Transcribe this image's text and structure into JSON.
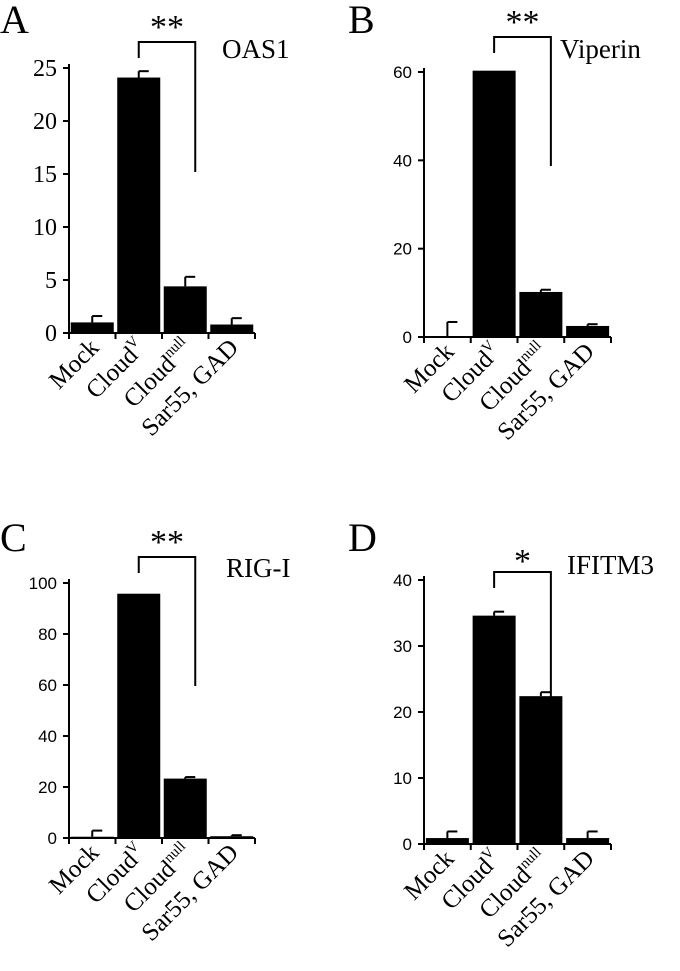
{
  "chart_data": [
    {
      "type": "bar",
      "panel": "A",
      "gene": "OAS1",
      "categories": [
        {
          "base": "Mock",
          "sup": ""
        },
        {
          "base": "Cloud",
          "sup": "V"
        },
        {
          "base": "Cloud",
          "sup": "null"
        },
        {
          "base": "Sar55, GAD",
          "sup": ""
        }
      ],
      "values": [
        1.0,
        24.1,
        4.4,
        0.8
      ],
      "errors": [
        0.6,
        0.6,
        0.9,
        0.6
      ],
      "ylim": [
        0,
        25
      ],
      "yticks": [
        0,
        5,
        10,
        15,
        20,
        25
      ],
      "significance": {
        "label": "**",
        "from": 1,
        "to": 2
      }
    },
    {
      "type": "bar",
      "panel": "B",
      "gene": "Viperin",
      "categories": [
        {
          "base": "Mock",
          "sup": ""
        },
        {
          "base": "Cloud",
          "sup": "V"
        },
        {
          "base": "Cloud",
          "sup": "null"
        },
        {
          "base": "Sar55, GAD",
          "sup": ""
        }
      ],
      "values": [
        0.2,
        60.3,
        10.2,
        2.5
      ],
      "errors": [
        3.2,
        0,
        0.5,
        0.4
      ],
      "ylim": [
        0,
        60
      ],
      "yticks": [
        0,
        20,
        40,
        60
      ],
      "significance": {
        "label": "**",
        "from": 1,
        "to": 2
      }
    },
    {
      "type": "bar",
      "panel": "C",
      "gene": "RIG-I",
      "categories": [
        {
          "base": "Mock",
          "sup": ""
        },
        {
          "base": "Cloud",
          "sup": "V"
        },
        {
          "base": "Cloud",
          "sup": "null"
        },
        {
          "base": "Sar55, GAD",
          "sup": ""
        }
      ],
      "values": [
        0.5,
        95.8,
        23.3,
        0.7
      ],
      "errors": [
        2.4,
        0,
        0.6,
        0.4
      ],
      "ylim": [
        0,
        100
      ],
      "yticks": [
        0,
        20,
        40,
        60,
        80,
        100
      ],
      "significance": {
        "label": "**",
        "from": 1,
        "to": 2
      }
    },
    {
      "type": "bar",
      "panel": "D",
      "gene": "IFITM3",
      "categories": [
        {
          "base": "Mock",
          "sup": ""
        },
        {
          "base": "Cloud",
          "sup": "V"
        },
        {
          "base": "Cloud",
          "sup": "null"
        },
        {
          "base": "Sar55, GAD",
          "sup": ""
        }
      ],
      "values": [
        0.9,
        34.6,
        22.4,
        0.9
      ],
      "errors": [
        1.0,
        0.6,
        0.6,
        1.0
      ],
      "ylim": [
        0,
        40
      ],
      "yticks": [
        0,
        10,
        20,
        30,
        40
      ],
      "significance": {
        "label": "*",
        "from": 1,
        "to": 2
      }
    }
  ]
}
